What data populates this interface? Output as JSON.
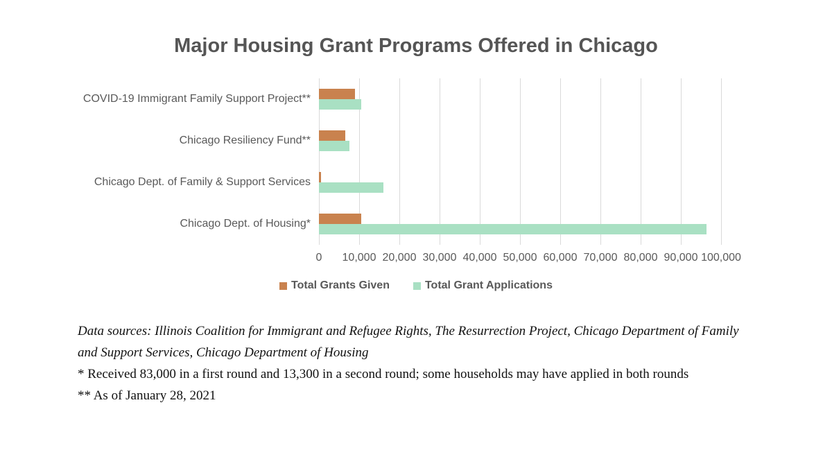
{
  "title": "Major Housing Grant Programs Offered in Chicago",
  "chart_data": {
    "type": "bar",
    "orientation": "horizontal",
    "title": "Major Housing Grant Programs Offered in Chicago",
    "categories": [
      "COVID-19 Immigrant Family Support Project**",
      "Chicago Resiliency Fund**",
      "Chicago Dept. of Family & Support Services",
      "Chicago Dept. of Housing*"
    ],
    "series": [
      {
        "name": "Total Grants Given",
        "color": "#C9824E",
        "values": [
          9000,
          6500,
          500,
          10500
        ]
      },
      {
        "name": "Total Grant Applications",
        "color": "#A9E0C3",
        "values": [
          10500,
          7600,
          16000,
          96300
        ]
      }
    ],
    "xlim": [
      0,
      100000
    ],
    "x_tick_labels": [
      "0",
      "10,000",
      "20,000",
      "30,000",
      "40,000",
      "50,000",
      "60,000",
      "70,000",
      "80,000",
      "90,000",
      "100,000"
    ],
    "grid": true,
    "gridline_color": "#D9D9D9",
    "legend_position": "bottom",
    "text_color": "#595959"
  },
  "footnotes": {
    "data_sources": "Data sources: Illinois Coalition for Immigrant and Refugee Rights, The Resurrection Project, Chicago Department of Family and Support Services, Chicago Department of Housing",
    "note_single_asterisk": "* Received 83,000 in a first round and 13,300 in a second round; some households may have applied in both rounds",
    "note_double_asterisk": "** As of January 28, 2021"
  }
}
